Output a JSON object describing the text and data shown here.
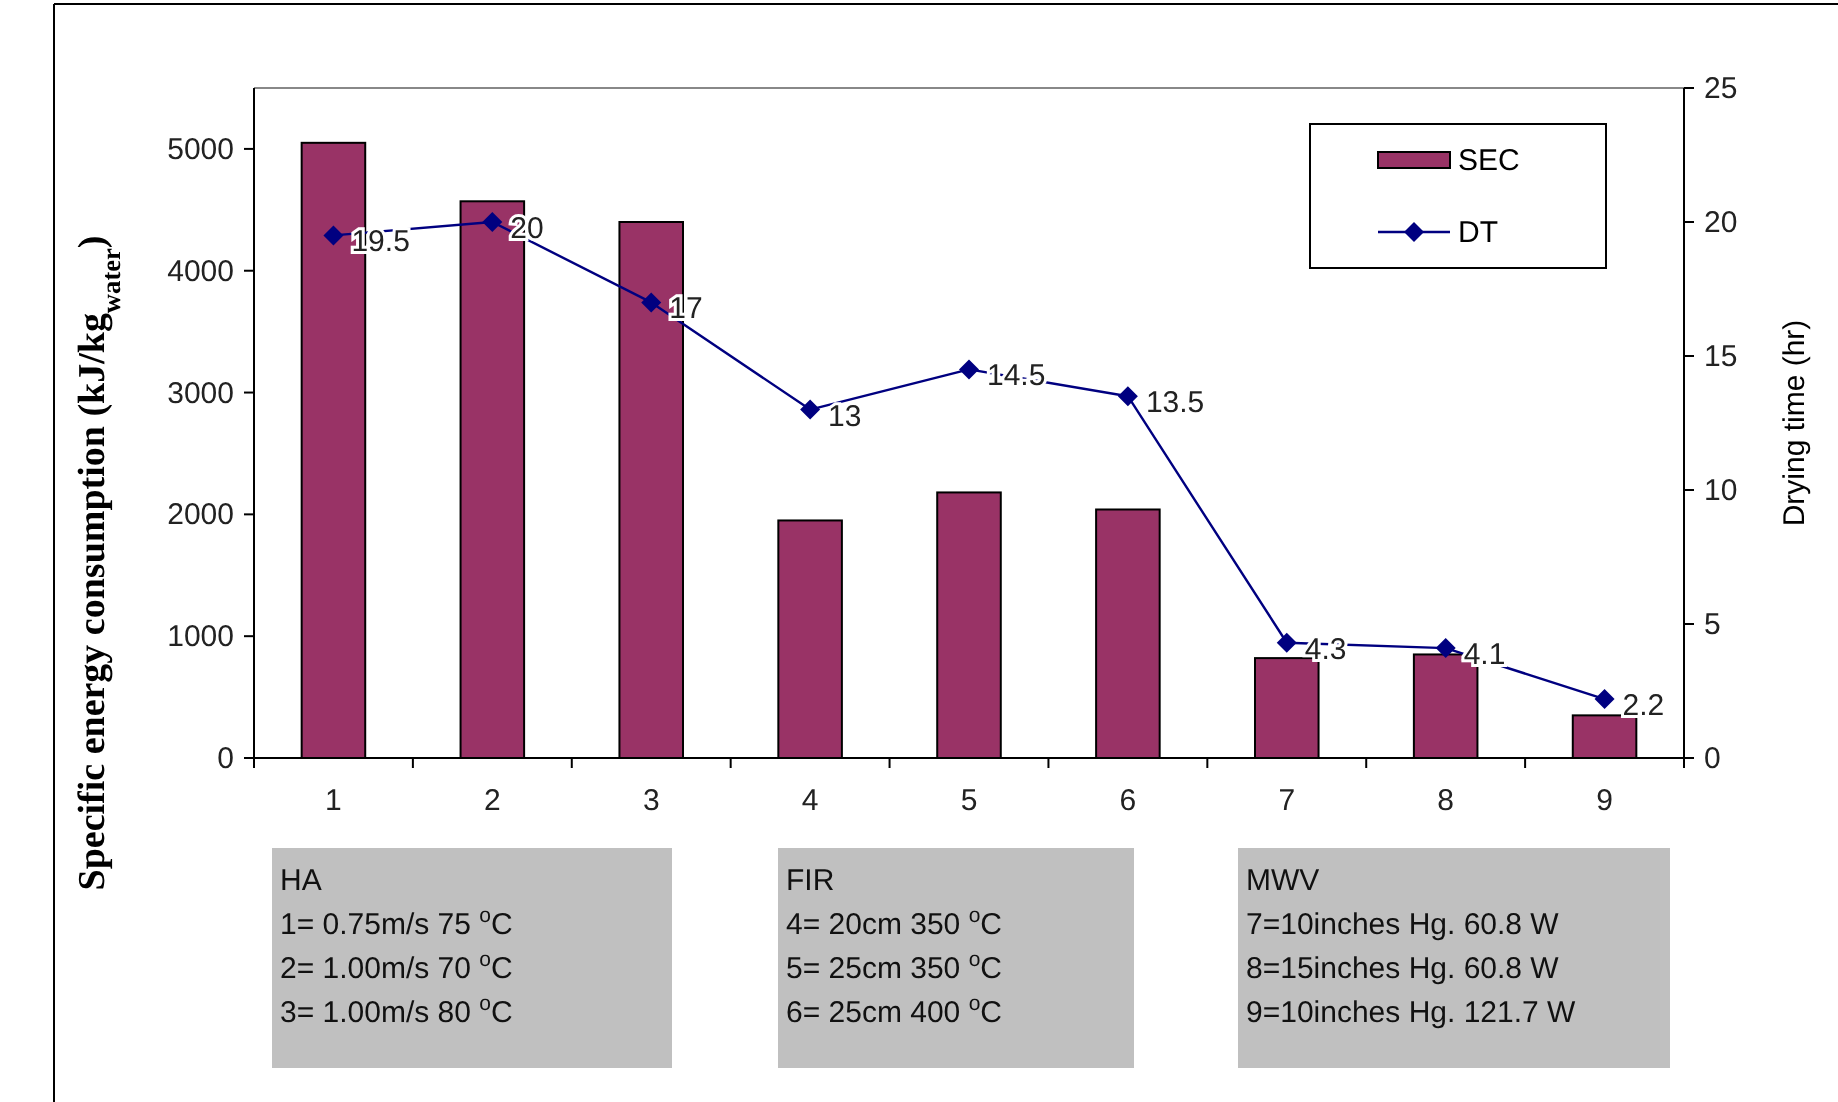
{
  "chart_data": {
    "type": "bar",
    "ylabel": "Specific energy consumption (kJ/kg$_{water}$)",
    "y2label": "Drying time (hr)",
    "categories": [
      "1",
      "2",
      "3",
      "4",
      "5",
      "6",
      "7",
      "8",
      "9"
    ],
    "series": [
      {
        "name": "SEC",
        "color": "#993366",
        "values": [
          5050,
          4570,
          4400,
          1950,
          2180,
          2040,
          820,
          850,
          350
        ]
      },
      {
        "name": "DT",
        "type": "line",
        "axis": "y2",
        "color": "#000080",
        "marker": "diamond",
        "values": [
          19.5,
          20,
          17,
          13,
          14.5,
          13.5,
          4.3,
          4.1,
          2.2
        ],
        "value_labels": [
          "19.5",
          "20",
          "17",
          "13",
          "14.5",
          "13.5",
          "4.3",
          "4.1",
          "2.2"
        ]
      }
    ],
    "ylim": [
      0,
      5500
    ],
    "yticks": [
      0,
      1000,
      2000,
      3000,
      4000,
      5000
    ],
    "y2lim": [
      0,
      25
    ],
    "y2ticks": [
      0,
      5,
      10,
      15,
      20,
      25
    ],
    "legend": "top right",
    "grid": false,
    "annotations": [
      "HA\n1= 0.75m/s 75 $^{o}$C\n2= 1.00m/s 70 $^{o}$C\n3= 1.00m/s 80 $^{o}$C",
      "FIR\n4= 20cm 350 $^{o}$C\n5= 25cm 350 $^{o}$C\n6= 25cm 400 $^{o}$C",
      "MWV\n7=10inches Hg. 60.8 W\n8=15inches Hg. 60.8 W\n9=10inches Hg. 121.7 W"
    ]
  }
}
